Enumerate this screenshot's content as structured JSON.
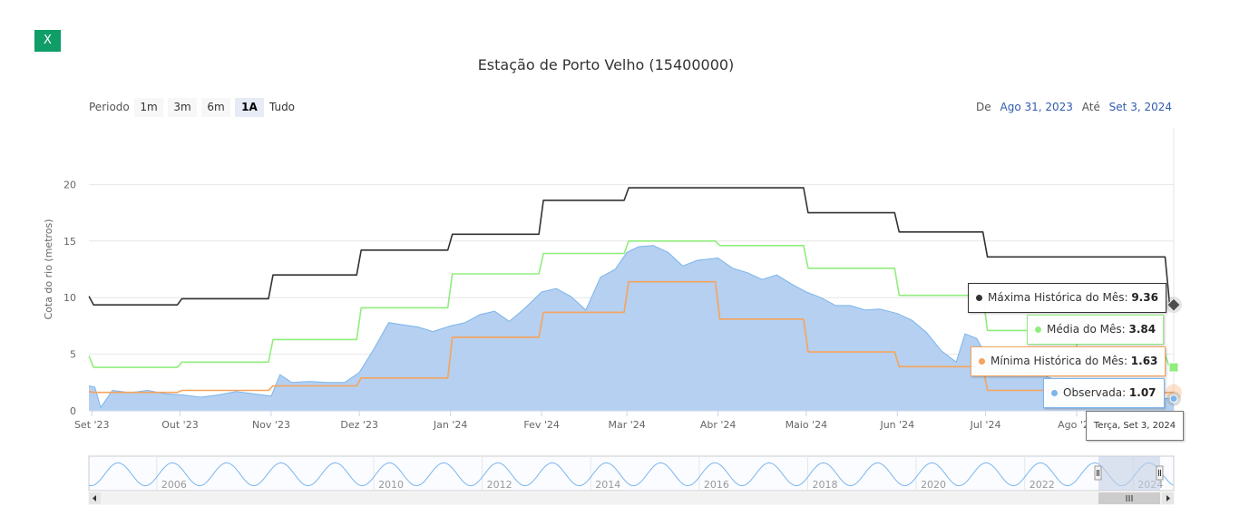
{
  "close_button": {
    "label": "X"
  },
  "title": "Estação de Porto Velho (15400000)",
  "range_selector": {
    "label": "Periodo",
    "buttons": [
      "1m",
      "3m",
      "6m",
      "1A",
      "Tudo"
    ],
    "selected": "1A"
  },
  "date_range": {
    "from_label": "De",
    "from": "Ago 31, 2023",
    "to_label": "Até",
    "to": "Set 3, 2024"
  },
  "colors": {
    "maxima": "#333333",
    "media": "#90ed7d",
    "minima": "#f7a35c",
    "observada_fill": "#b5d0f0",
    "observada_line": "#7cb5ec",
    "accent_button": "#0f9d68",
    "navigator_mask": "#c7d0e4"
  },
  "tooltip": {
    "date": "Terça, Set 3, 2024",
    "items": [
      {
        "name": "Máxima Histórica do Mês",
        "value": "9.36"
      },
      {
        "name": "Média do Mês",
        "value": "3.84"
      },
      {
        "name": "Mínima Histórica do Mês",
        "value": "1.63"
      },
      {
        "name": "Observada",
        "value": "1.07"
      }
    ]
  },
  "navigator": {
    "years": [
      "2006",
      "2010",
      "2012",
      "2014",
      "2016",
      "2018",
      "2020",
      "2022",
      "2024"
    ]
  },
  "chart_data": {
    "type": "area",
    "title": "Estação de Porto Velho (15400000)",
    "ylabel": "Cota do rio (metros)",
    "xlabel": "",
    "ylim": [
      0,
      25
    ],
    "yticks": [
      0,
      5,
      10,
      15,
      20
    ],
    "x_range": [
      "2023-08-31",
      "2024-09-03"
    ],
    "x_ticks": [
      {
        "label": "Set '23",
        "date": "2023-09-01"
      },
      {
        "label": "Out '23",
        "date": "2023-10-01"
      },
      {
        "label": "Nov '23",
        "date": "2023-11-01"
      },
      {
        "label": "Dez '23",
        "date": "2023-12-01"
      },
      {
        "label": "Jan '24",
        "date": "2024-01-01"
      },
      {
        "label": "Fev '24",
        "date": "2024-02-01"
      },
      {
        "label": "Mar '24",
        "date": "2024-03-01"
      },
      {
        "label": "Abr '24",
        "date": "2024-04-01"
      },
      {
        "label": "Maio '24",
        "date": "2024-05-01"
      },
      {
        "label": "Jun '24",
        "date": "2024-06-01"
      },
      {
        "label": "Jul '24",
        "date": "2024-07-01"
      },
      {
        "label": "Ago '24",
        "date": "2024-08-01"
      }
    ],
    "grid": true,
    "series": [
      {
        "name": "Máxima Histórica do Mês",
        "kind": "step",
        "x": [
          "2023-08-31",
          "2023-09-01",
          "2023-10-01",
          "2023-11-01",
          "2023-12-01",
          "2024-01-01",
          "2024-02-01",
          "2024-03-01",
          "2024-04-01",
          "2024-05-01",
          "2024-06-01",
          "2024-07-01",
          "2024-08-01",
          "2024-09-01",
          "2024-09-03"
        ],
        "y": [
          10.1,
          9.36,
          9.9,
          12.0,
          14.2,
          15.6,
          18.6,
          19.7,
          19.7,
          17.5,
          15.8,
          13.6,
          13.6,
          9.36,
          9.36
        ]
      },
      {
        "name": "Média do Mês",
        "kind": "step",
        "x": [
          "2023-08-31",
          "2023-09-01",
          "2023-10-01",
          "2023-11-01",
          "2023-12-01",
          "2024-01-01",
          "2024-02-01",
          "2024-03-01",
          "2024-04-01",
          "2024-05-01",
          "2024-06-01",
          "2024-07-01",
          "2024-08-01",
          "2024-09-01",
          "2024-09-03"
        ],
        "y": [
          4.8,
          3.84,
          4.3,
          6.3,
          9.1,
          12.1,
          13.9,
          15.0,
          14.6,
          12.6,
          10.2,
          7.1,
          4.9,
          3.84,
          3.84
        ]
      },
      {
        "name": "Mínima Histórica do Mês",
        "kind": "step",
        "x": [
          "2023-08-31",
          "2023-09-01",
          "2023-10-01",
          "2023-11-01",
          "2023-12-01",
          "2024-01-01",
          "2024-02-01",
          "2024-03-01",
          "2024-04-01",
          "2024-05-01",
          "2024-06-01",
          "2024-07-01",
          "2024-08-01",
          "2024-09-01",
          "2024-09-03"
        ],
        "y": [
          1.7,
          1.63,
          1.8,
          2.2,
          2.9,
          6.5,
          8.7,
          11.4,
          8.1,
          5.2,
          3.9,
          1.8,
          1.6,
          1.63,
          1.63
        ]
      },
      {
        "name": "Observada",
        "kind": "area",
        "x": [
          "2023-08-31",
          "2023-09-02",
          "2023-09-04",
          "2023-09-08",
          "2023-09-14",
          "2023-09-20",
          "2023-09-26",
          "2023-10-02",
          "2023-10-08",
          "2023-10-14",
          "2023-10-20",
          "2023-10-26",
          "2023-11-01",
          "2023-11-04",
          "2023-11-08",
          "2023-11-14",
          "2023-11-20",
          "2023-11-26",
          "2023-12-01",
          "2023-12-06",
          "2023-12-11",
          "2023-12-16",
          "2023-12-21",
          "2023-12-26",
          "2024-01-01",
          "2024-01-06",
          "2024-01-11",
          "2024-01-16",
          "2024-01-21",
          "2024-01-26",
          "2024-02-01",
          "2024-02-06",
          "2024-02-11",
          "2024-02-16",
          "2024-02-21",
          "2024-02-26",
          "2024-03-01",
          "2024-03-05",
          "2024-03-10",
          "2024-03-15",
          "2024-03-20",
          "2024-03-25",
          "2024-04-01",
          "2024-04-06",
          "2024-04-11",
          "2024-04-16",
          "2024-04-21",
          "2024-04-26",
          "2024-05-01",
          "2024-05-06",
          "2024-05-11",
          "2024-05-16",
          "2024-05-21",
          "2024-05-26",
          "2024-06-01",
          "2024-06-06",
          "2024-06-11",
          "2024-06-16",
          "2024-06-21",
          "2024-06-24",
          "2024-06-28",
          "2024-07-01",
          "2024-07-06",
          "2024-07-11",
          "2024-07-16",
          "2024-07-21",
          "2024-07-26",
          "2024-08-01",
          "2024-08-06",
          "2024-08-11",
          "2024-08-16",
          "2024-08-21",
          "2024-08-26",
          "2024-09-01",
          "2024-09-03"
        ],
        "y": [
          2.2,
          2.1,
          0.3,
          1.8,
          1.6,
          1.8,
          1.5,
          1.4,
          1.2,
          1.4,
          1.7,
          1.5,
          1.3,
          3.2,
          2.5,
          2.6,
          2.5,
          2.5,
          3.4,
          5.5,
          7.8,
          7.6,
          7.4,
          7.0,
          7.5,
          7.8,
          8.5,
          8.8,
          7.9,
          9.0,
          10.5,
          10.8,
          10.1,
          8.9,
          11.8,
          12.5,
          14.0,
          14.5,
          14.6,
          14.0,
          12.8,
          13.3,
          13.5,
          12.6,
          12.2,
          11.6,
          12.0,
          11.2,
          10.5,
          10.0,
          9.3,
          9.3,
          8.9,
          9.0,
          8.6,
          8.0,
          6.9,
          5.3,
          4.3,
          6.8,
          6.4,
          5.0,
          4.3,
          3.9,
          3.5,
          3.1,
          2.6,
          2.2,
          1.8,
          1.3,
          1.1,
          1.0,
          1.0,
          1.1,
          1.07
        ]
      }
    ],
    "navigator": {
      "x_range": [
        "2004-10-01",
        "2024-09-30"
      ],
      "selected": [
        "2023-08-31",
        "2024-09-03"
      ],
      "year_labels": [
        "2006",
        "2010",
        "2012",
        "2014",
        "2016",
        "2018",
        "2020",
        "2022",
        "2024"
      ]
    }
  }
}
